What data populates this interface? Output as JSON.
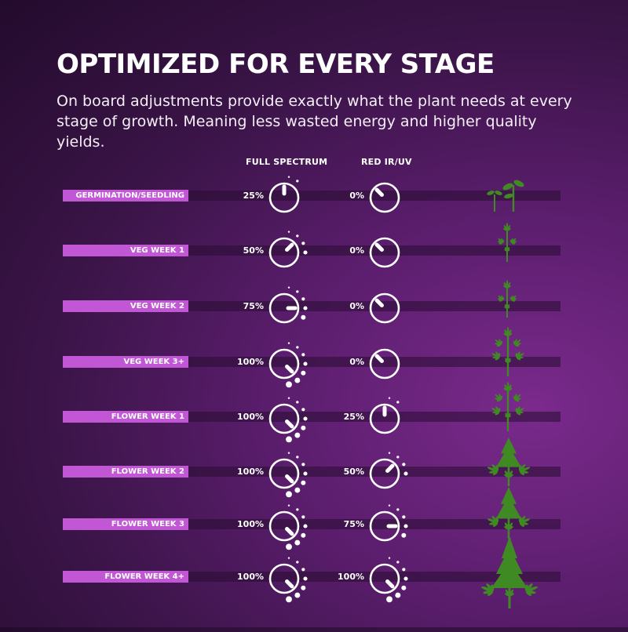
{
  "header": {
    "title": "OPTIMIZED FOR EVERY STAGE",
    "subtitle": "On board adjustments provide exactly what the plant needs at every stage of growth. Meaning less wasted energy and higher quality yields."
  },
  "columns": {
    "full_spectrum": "FULL SPECTRUM",
    "red_ir_uv": "RED IR/UV"
  },
  "colors": {
    "label_bg": "#c257d6",
    "plant_green": "#3f8a22"
  },
  "stages": [
    {
      "label": "GERMINATION/SEEDLING",
      "full_spectrum": "25%",
      "full_level": 0.25,
      "red_ir_uv": "0%",
      "red_level": 0,
      "plant_icon": "seedling-icon"
    },
    {
      "label": "VEG WEEK 1",
      "full_spectrum": "50%",
      "full_level": 0.5,
      "red_ir_uv": "0%",
      "red_level": 0,
      "plant_icon": "small-plant-icon"
    },
    {
      "label": "VEG WEEK 2",
      "full_spectrum": "75%",
      "full_level": 0.75,
      "red_ir_uv": "0%",
      "red_level": 0,
      "plant_icon": "small-plant-icon"
    },
    {
      "label": "VEG WEEK 3+",
      "full_spectrum": "100%",
      "full_level": 1,
      "red_ir_uv": "0%",
      "red_level": 0,
      "plant_icon": "medium-plant-icon"
    },
    {
      "label": "FLOWER WEEK 1",
      "full_spectrum": "100%",
      "full_level": 1,
      "red_ir_uv": "25%",
      "red_level": 0.25,
      "plant_icon": "medium-plant-icon"
    },
    {
      "label": "FLOWER WEEK 2",
      "full_spectrum": "100%",
      "full_level": 1,
      "red_ir_uv": "50%",
      "red_level": 0.5,
      "plant_icon": "bushy-plant-icon"
    },
    {
      "label": "FLOWER WEEK 3",
      "full_spectrum": "100%",
      "full_level": 1,
      "red_ir_uv": "75%",
      "red_level": 0.75,
      "plant_icon": "bushy-plant-icon"
    },
    {
      "label": "FLOWER WEEK 4+",
      "full_spectrum": "100%",
      "full_level": 1,
      "red_ir_uv": "100%",
      "red_level": 1,
      "plant_icon": "large-plant-icon"
    }
  ]
}
